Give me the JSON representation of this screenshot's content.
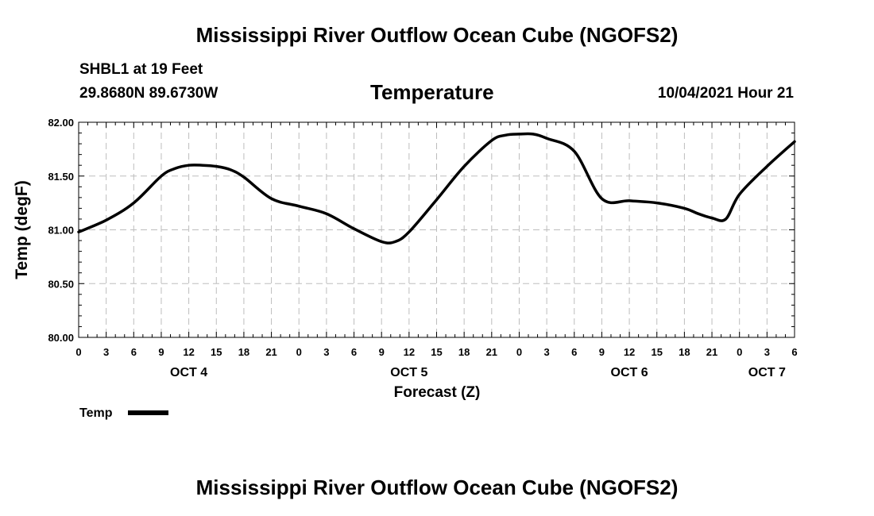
{
  "header": {
    "title": "Mississippi River Outflow Ocean Cube (NGOFS2)",
    "station": "SHBL1 at 19 Feet",
    "location": "29.8680N  89.6730W",
    "variable": "Temperature",
    "forecast_time": "10/04/2021 Hour 21"
  },
  "footer": {
    "title": "Mississippi River Outflow Ocean Cube (NGOFS2)"
  },
  "chart_data": {
    "type": "line",
    "title": "Temperature",
    "xlabel": "Forecast (Z)",
    "ylabel": "Temp (degF)",
    "ylim": [
      80.0,
      82.0
    ],
    "xlim": [
      0,
      78
    ],
    "grid": true,
    "y_ticks": [
      "80.00",
      "80.50",
      "81.00",
      "81.50",
      "82.00"
    ],
    "x_ticks": [
      "0",
      "3",
      "6",
      "9",
      "12",
      "15",
      "18",
      "21",
      "0",
      "3",
      "6",
      "9",
      "12",
      "15",
      "18",
      "21",
      "0",
      "3",
      "6",
      "9",
      "12",
      "15",
      "18",
      "21",
      "0",
      "3",
      "6"
    ],
    "day_labels": [
      {
        "label": "OCT 4",
        "hour": 12
      },
      {
        "label": "OCT 5",
        "hour": 36
      },
      {
        "label": "OCT 6",
        "hour": 60
      },
      {
        "label": "OCT 7",
        "hour": 75
      }
    ],
    "legend": {
      "position": "bottom-left",
      "label": "Temp"
    },
    "series": [
      {
        "name": "Temp",
        "x": [
          0,
          3,
          6,
          9,
          10.5,
          12,
          13.5,
          15,
          16.5,
          18,
          21,
          24,
          27,
          30,
          33,
          34.5,
          36,
          39,
          42,
          45,
          46.5,
          48,
          49.5,
          51,
          54,
          57,
          60,
          63,
          66,
          67.5,
          69,
          70.5,
          72,
          75,
          78
        ],
        "y": [
          80.98,
          81.09,
          81.25,
          81.5,
          81.57,
          81.6,
          81.6,
          81.59,
          81.56,
          81.49,
          81.29,
          81.22,
          81.15,
          81.01,
          80.89,
          80.89,
          80.98,
          81.28,
          81.59,
          81.83,
          81.88,
          81.89,
          81.89,
          81.85,
          81.73,
          81.29,
          81.27,
          81.25,
          81.2,
          81.15,
          81.11,
          81.1,
          81.33,
          81.59,
          81.82
        ]
      }
    ]
  }
}
